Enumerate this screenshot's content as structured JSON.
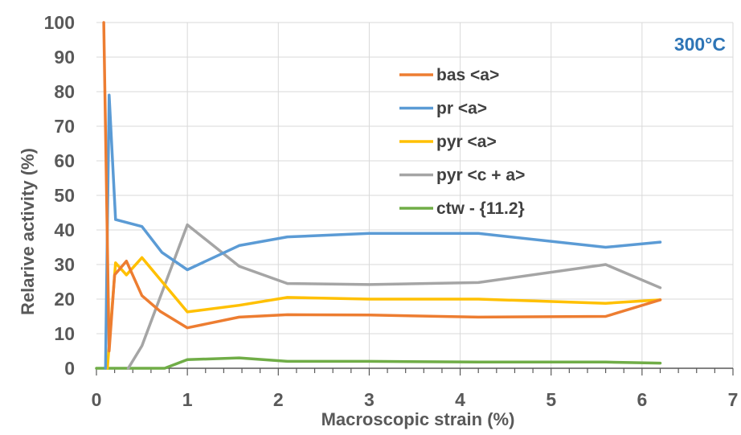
{
  "chart_data": {
    "type": "line",
    "annotation": "300°C",
    "xlabel": "Macroscopic strain (%)",
    "ylabel": "Relarive activity (%)",
    "xlim": [
      0,
      7
    ],
    "ylim": [
      0,
      100
    ],
    "xticks": [
      "0",
      "1",
      "2",
      "3",
      "4",
      "5",
      "6",
      "7"
    ],
    "yticks": [
      "0",
      "10",
      "20",
      "30",
      "40",
      "50",
      "60",
      "70",
      "80",
      "90",
      "100"
    ],
    "grid": true,
    "legend_position": "top-right",
    "colors": {
      "bas": "#ED7D31",
      "pr": "#5B9BD5",
      "pyr_a": "#FFC000",
      "pyr_ca": "#A5A5A5",
      "ctw": "#70AD47",
      "annotation": "#2E75B6",
      "grid": "#D9D9D9",
      "axis": "#595959"
    },
    "series": [
      {
        "key": "bas",
        "name": "bas <a>",
        "points": [
          [
            0.08,
            100
          ],
          [
            0.14,
            5
          ],
          [
            0.2,
            27
          ],
          [
            0.33,
            31
          ],
          [
            0.5,
            21
          ],
          [
            0.7,
            16.5
          ],
          [
            1.0,
            11.7
          ],
          [
            1.57,
            14.8
          ],
          [
            2.1,
            15.5
          ],
          [
            3.0,
            15.4
          ],
          [
            4.2,
            14.8
          ],
          [
            5.6,
            15.0
          ],
          [
            6.2,
            19.8
          ]
        ]
      },
      {
        "key": "pr",
        "name": "pr <a>",
        "points": [
          [
            0.1,
            0
          ],
          [
            0.14,
            79
          ],
          [
            0.21,
            43
          ],
          [
            0.5,
            41
          ],
          [
            0.72,
            33.5
          ],
          [
            1.0,
            28.5
          ],
          [
            1.57,
            35.5
          ],
          [
            2.1,
            38.0
          ],
          [
            3.0,
            39.0
          ],
          [
            4.2,
            39.0
          ],
          [
            5.6,
            35.0
          ],
          [
            6.2,
            36.5
          ]
        ]
      },
      {
        "key": "pyr_a",
        "name": "pyr  <a>",
        "points": [
          [
            0.12,
            0
          ],
          [
            0.21,
            30.5
          ],
          [
            0.33,
            27
          ],
          [
            0.5,
            32
          ],
          [
            1.0,
            16.3
          ],
          [
            1.57,
            18.2
          ],
          [
            2.1,
            20.5
          ],
          [
            3.0,
            20.0
          ],
          [
            4.2,
            20.0
          ],
          [
            5.6,
            18.8
          ],
          [
            6.2,
            19.8
          ]
        ]
      },
      {
        "key": "pyr_ca",
        "name": "pyr <c + a>",
        "points": [
          [
            0.35,
            0
          ],
          [
            0.5,
            6.5
          ],
          [
            1.0,
            41.5
          ],
          [
            1.57,
            29.5
          ],
          [
            2.1,
            24.5
          ],
          [
            3.0,
            24.2
          ],
          [
            4.2,
            24.8
          ],
          [
            5.6,
            30.0
          ],
          [
            6.2,
            23.3
          ]
        ]
      },
      {
        "key": "ctw",
        "name": "ctw - {11.2}",
        "points": [
          [
            0,
            0
          ],
          [
            0.75,
            0
          ],
          [
            1.0,
            2.5
          ],
          [
            1.57,
            3.0
          ],
          [
            2.1,
            2.0
          ],
          [
            3.0,
            2.0
          ],
          [
            4.2,
            1.8
          ],
          [
            5.6,
            1.8
          ],
          [
            6.2,
            1.5
          ]
        ]
      }
    ]
  }
}
